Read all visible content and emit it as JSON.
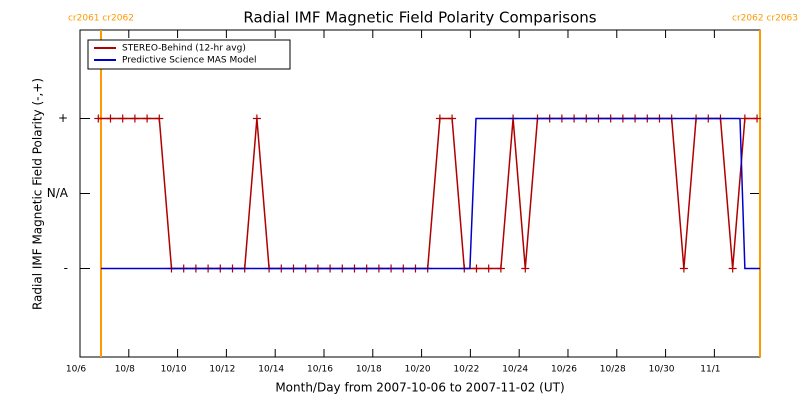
{
  "chart_data": {
    "type": "line",
    "title": "Radial IMF Magnetic Field Polarity Comparisons",
    "x_label": "Month/Day from 2007-10-06 to 2007-11-02 (UT)",
    "y_label": "Radial IMF Magnetic Field Polarity (-,+)",
    "xlim": [
      6,
      33.87
    ],
    "xticks": [
      {
        "value": 6,
        "label": "10/6"
      },
      {
        "value": 8,
        "label": "10/8"
      },
      {
        "value": 10,
        "label": "10/10"
      },
      {
        "value": 12,
        "label": "10/12"
      },
      {
        "value": 14,
        "label": "10/14"
      },
      {
        "value": 16,
        "label": "10/16"
      },
      {
        "value": 18,
        "label": "10/18"
      },
      {
        "value": 20,
        "label": "10/20"
      },
      {
        "value": 22,
        "label": "10/22"
      },
      {
        "value": 24,
        "label": "10/24"
      },
      {
        "value": 26,
        "label": "10/26"
      },
      {
        "value": 28,
        "label": "10/28"
      },
      {
        "value": 30,
        "label": "10/30"
      },
      {
        "value": 32,
        "label": "11/1"
      }
    ],
    "ylim": [
      -2.18,
      2.18
    ],
    "yticks": [
      {
        "value": 1,
        "label": "+"
      },
      {
        "value": 0,
        "label": "N/A"
      },
      {
        "value": -1,
        "label": "-"
      }
    ],
    "legend_position": "upper-left",
    "boundary_color": "#ff9900",
    "boundaries": [
      {
        "x": 6.86,
        "label": "cr2061 cr2062"
      },
      {
        "x": 33.87,
        "label": "cr2062 cr2063"
      }
    ],
    "series": [
      {
        "name": "STEREO-Behind (12-hr avg)",
        "color": "#b00000",
        "markers": true,
        "x": [
          6.75,
          7.25,
          7.75,
          8.25,
          8.75,
          9.25,
          9.75,
          10.25,
          10.75,
          11.25,
          11.75,
          12.25,
          12.75,
          13.25,
          13.75,
          14.25,
          14.75,
          15.25,
          15.75,
          16.25,
          16.75,
          17.25,
          17.75,
          18.25,
          18.75,
          19.25,
          19.75,
          20.25,
          20.75,
          21.25,
          21.75,
          22.25,
          22.75,
          23.25,
          23.75,
          24.25,
          24.75,
          25.25,
          25.75,
          26.25,
          26.75,
          27.25,
          27.75,
          28.25,
          28.75,
          29.25,
          29.75,
          30.25,
          30.75,
          31.25,
          31.75,
          32.25,
          32.75,
          33.25,
          33.75
        ],
        "values": [
          1,
          1,
          1,
          1,
          1,
          1,
          -1,
          -1,
          -1,
          -1,
          -1,
          -1,
          -1,
          1,
          -1,
          -1,
          -1,
          -1,
          -1,
          -1,
          -1,
          -1,
          -1,
          -1,
          -1,
          -1,
          -1,
          -1,
          1,
          1,
          -1,
          -1,
          -1,
          -1,
          1,
          -1,
          1,
          1,
          1,
          1,
          1,
          1,
          1,
          1,
          1,
          1,
          1,
          1,
          -1,
          1,
          1,
          1,
          -1,
          1,
          1
        ]
      },
      {
        "name": "Predictive Science MAS Model",
        "color": "#0000cc",
        "markers": false,
        "x": [
          6.86,
          21.98,
          22.23,
          33.05,
          33.25,
          33.87
        ],
        "values": [
          -1,
          -1,
          1,
          1,
          -1,
          -1
        ]
      }
    ]
  }
}
